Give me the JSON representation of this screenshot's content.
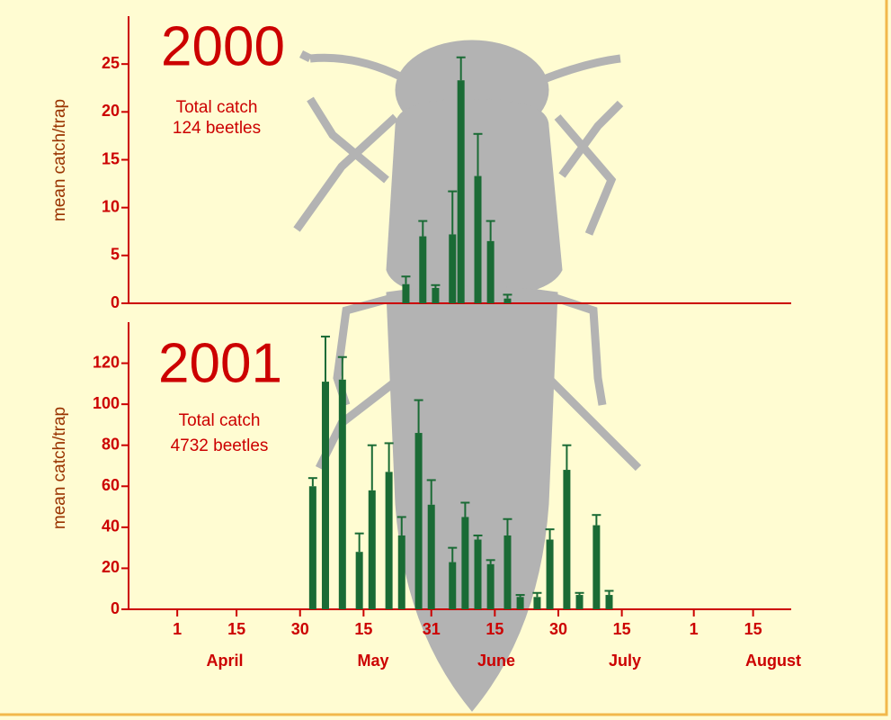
{
  "chart_data": [
    {
      "type": "bar",
      "title": "2000",
      "annotations": [
        "Total catch",
        "124 beetles"
      ],
      "ylabel": "mean catch/trap",
      "x": [
        55,
        59,
        62,
        66,
        68,
        72,
        75,
        79
      ],
      "values": [
        2,
        7,
        1.6,
        7.2,
        23.3,
        13.3,
        6.5,
        0.5
      ],
      "errors": [
        0.8,
        1.6,
        0.3,
        4.5,
        2.4,
        4.4,
        2.1,
        0.4
      ],
      "color": "#1a6b35",
      "xlim": [
        -10.5,
        146
      ],
      "ylim": [
        0,
        30
      ],
      "yticks": [
        0,
        5,
        10,
        15,
        20,
        25
      ]
    },
    {
      "type": "bar",
      "title": "2001",
      "annotations": [
        "Total catch",
        "4732 beetles"
      ],
      "ylabel": "mean catch/trap",
      "x": [
        33,
        36,
        40,
        44,
        47,
        51,
        54,
        58,
        61,
        66,
        69,
        72,
        75,
        79,
        82,
        86,
        89,
        93,
        96,
        100,
        103
      ],
      "values": [
        60,
        111,
        112,
        28,
        58,
        67,
        36,
        86,
        51,
        23,
        45,
        34,
        22,
        36,
        6,
        6,
        34,
        68,
        7,
        41,
        7
      ],
      "errors": [
        4,
        22,
        11,
        9,
        22,
        14,
        9,
        16,
        12,
        7,
        7,
        2,
        2,
        8,
        1,
        2,
        5,
        12,
        1,
        5,
        2
      ],
      "color": "#1a6b35",
      "xlim": [
        -10.5,
        146
      ],
      "ylim": [
        0,
        140
      ],
      "yticks": [
        0,
        20,
        40,
        60,
        80,
        100,
        120
      ],
      "xticks": [
        {
          "value": 1,
          "label": "1"
        },
        {
          "value": 15,
          "label": "15"
        },
        {
          "value": 30,
          "label": "30"
        },
        {
          "value": 45,
          "label": "15"
        },
        {
          "value": 61,
          "label": "31"
        },
        {
          "value": 76,
          "label": "15"
        },
        {
          "value": 91,
          "label": "30"
        },
        {
          "value": 106,
          "label": "15"
        },
        {
          "value": 123,
          "label": "1"
        },
        {
          "value": 137,
          "label": "15"
        }
      ],
      "months": [
        "April",
        "May",
        "June",
        "July",
        "August"
      ]
    }
  ]
}
